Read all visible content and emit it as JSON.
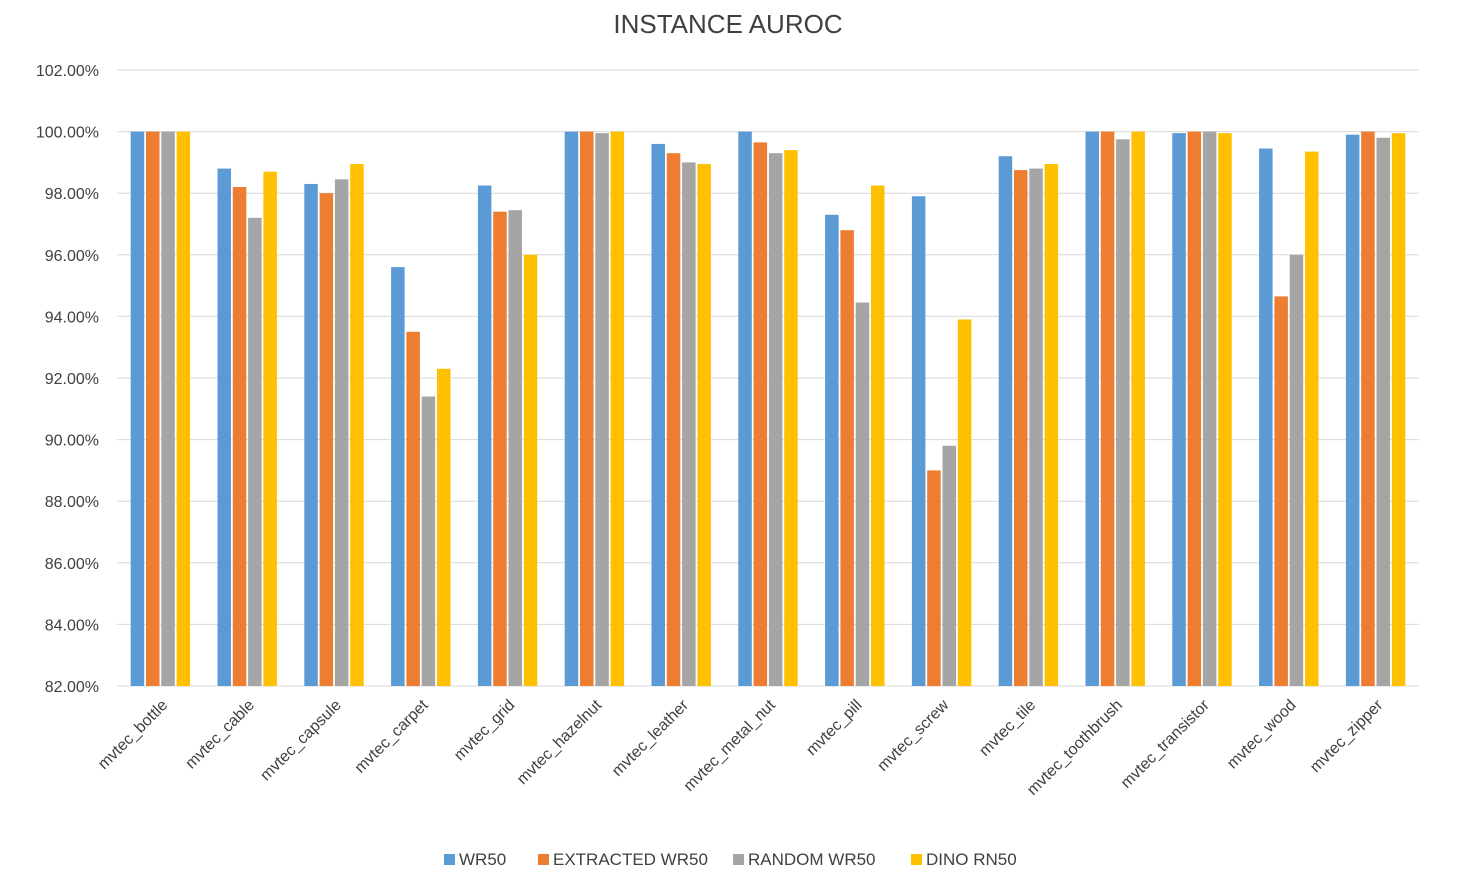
{
  "chart_data": {
    "type": "bar",
    "title": "INSTANCE AUROC",
    "xlabel": "",
    "ylabel": "",
    "ylim": [
      82,
      102
    ],
    "y_ticks": [
      "82.00%",
      "84.00%",
      "86.00%",
      "88.00%",
      "90.00%",
      "92.00%",
      "94.00%",
      "96.00%",
      "98.00%",
      "100.00%",
      "102.00%"
    ],
    "y_tick_values": [
      82,
      84,
      86,
      88,
      90,
      92,
      94,
      96,
      98,
      100,
      102
    ],
    "grid": true,
    "legend_position": "bottom",
    "categories": [
      "mvtec_bottle",
      "mvtec_cable",
      "mvtec_capsule",
      "mvtec_carpet",
      "mvtec_grid",
      "mvtec_hazelnut",
      "mvtec_leather",
      "mvtec_metal_nut",
      "mvtec_pill",
      "mvtec_screw",
      "mvtec_tile",
      "mvtec_toothbrush",
      "mvtec_transistor",
      "mvtec_wood",
      "mvtec_zipper"
    ],
    "series": [
      {
        "name": "WR50",
        "color": "#5b9bd5",
        "values": [
          100.0,
          98.8,
          98.3,
          95.6,
          98.25,
          100.0,
          99.6,
          100.0,
          97.3,
          97.9,
          99.2,
          100.0,
          99.95,
          99.45,
          99.9
        ]
      },
      {
        "name": "EXTRACTED WR50",
        "color": "#ed7d31",
        "values": [
          100.0,
          98.2,
          98.0,
          93.5,
          97.4,
          100.0,
          99.3,
          99.65,
          96.8,
          89.0,
          98.75,
          100.0,
          100.0,
          94.65,
          100.0
        ]
      },
      {
        "name": "RANDOM WR50",
        "color": "#a5a5a5",
        "values": [
          100.0,
          97.2,
          98.45,
          91.4,
          97.45,
          99.95,
          99.0,
          99.3,
          94.45,
          89.8,
          98.8,
          99.75,
          100.0,
          96.0,
          99.8
        ]
      },
      {
        "name": "DINO RN50",
        "color": "#ffc000",
        "values": [
          100.0,
          98.7,
          98.95,
          92.3,
          96.0,
          100.0,
          98.95,
          99.4,
          98.25,
          93.9,
          98.95,
          100.0,
          99.95,
          99.35,
          99.95
        ]
      }
    ]
  }
}
